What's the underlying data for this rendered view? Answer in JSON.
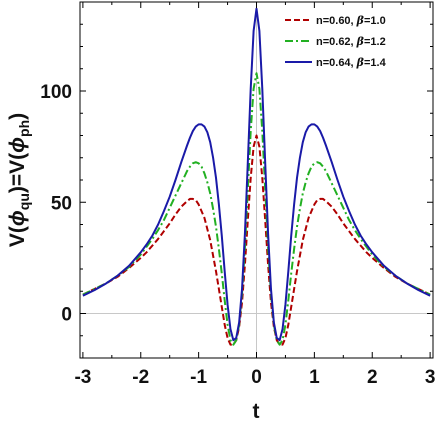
{
  "chart_data": {
    "type": "line",
    "xlabel": "t",
    "ylabel_parts": {
      "pre": "V(",
      "phi1": "ϕ",
      "sub1": "qu",
      "mid": ")=V(",
      "phi2": "ϕ",
      "sub2": "ph",
      "post": ")"
    },
    "xlim": [
      -3.05,
      3.05
    ],
    "ylim": [
      -20,
      140
    ],
    "x_ticks": [
      -3,
      -2,
      -1,
      0,
      1,
      2,
      3
    ],
    "x_tick_labels": [
      "-3",
      "-2",
      "-1",
      "0",
      "1",
      "2",
      "3"
    ],
    "y_ticks": [
      0,
      50,
      100
    ],
    "y_tick_labels": [
      "0",
      "50",
      "100"
    ],
    "grid": false,
    "legend_position": "top-right",
    "series": [
      {
        "name_n": "n=0.60, ",
        "name_beta_symbol": "β",
        "name_beta_value": "=1.0",
        "color": "#b00000",
        "dash": "dashed",
        "points": [
          [
            0,
            80
          ],
          [
            0.05,
            75
          ],
          [
            0.1,
            61
          ],
          [
            0.15,
            42
          ],
          [
            0.2,
            22
          ],
          [
            0.25,
            5
          ],
          [
            0.3,
            -6
          ],
          [
            0.35,
            -12
          ],
          [
            0.4,
            -14
          ],
          [
            0.45,
            -14
          ],
          [
            0.5,
            -11
          ],
          [
            0.55,
            -5
          ],
          [
            0.6,
            3
          ],
          [
            0.65,
            11
          ],
          [
            0.7,
            19
          ],
          [
            0.75,
            26
          ],
          [
            0.8,
            33
          ],
          [
            0.85,
            38
          ],
          [
            0.9,
            43
          ],
          [
            0.95,
            46
          ],
          [
            1.0,
            49
          ],
          [
            1.05,
            51
          ],
          [
            1.1,
            51.5
          ],
          [
            1.15,
            51.5
          ],
          [
            1.2,
            50.5
          ],
          [
            1.3,
            48
          ],
          [
            1.4,
            44.5
          ],
          [
            1.5,
            40.5
          ],
          [
            1.6,
            37
          ],
          [
            1.7,
            33.5
          ],
          [
            1.8,
            30.5
          ],
          [
            1.9,
            27.5
          ],
          [
            2.0,
            25
          ],
          [
            2.2,
            20.5
          ],
          [
            2.4,
            16.5
          ],
          [
            2.6,
            13.5
          ],
          [
            2.8,
            11
          ],
          [
            3.0,
            8.5
          ]
        ]
      },
      {
        "name_n": "n=0.62, ",
        "name_beta_symbol": "β",
        "name_beta_value": "=1.2",
        "color": "#22b022",
        "dash": "dashdot",
        "points": [
          [
            0,
            108
          ],
          [
            0.05,
            101
          ],
          [
            0.1,
            82
          ],
          [
            0.15,
            56
          ],
          [
            0.2,
            30
          ],
          [
            0.25,
            9
          ],
          [
            0.3,
            -5
          ],
          [
            0.35,
            -12
          ],
          [
            0.4,
            -14
          ],
          [
            0.45,
            -12
          ],
          [
            0.5,
            -5
          ],
          [
            0.55,
            6
          ],
          [
            0.6,
            18
          ],
          [
            0.65,
            29
          ],
          [
            0.7,
            39
          ],
          [
            0.75,
            47
          ],
          [
            0.8,
            54
          ],
          [
            0.85,
            59
          ],
          [
            0.9,
            63
          ],
          [
            0.95,
            66
          ],
          [
            1.0,
            67.5
          ],
          [
            1.05,
            68
          ],
          [
            1.1,
            67.5
          ],
          [
            1.15,
            66
          ],
          [
            1.2,
            64
          ],
          [
            1.3,
            58.5
          ],
          [
            1.4,
            53
          ],
          [
            1.5,
            47.5
          ],
          [
            1.6,
            42
          ],
          [
            1.7,
            37.5
          ],
          [
            1.8,
            33.5
          ],
          [
            1.9,
            30
          ],
          [
            2.0,
            26.5
          ],
          [
            2.2,
            21
          ],
          [
            2.4,
            17
          ],
          [
            2.6,
            13.5
          ],
          [
            2.8,
            11
          ],
          [
            3.0,
            8.5
          ]
        ]
      },
      {
        "name_n": "n=0.64, ",
        "name_beta_symbol": "β",
        "name_beta_value": "=1.4",
        "color": "#1a1aa8",
        "dash": "solid",
        "points": [
          [
            0,
            137
          ],
          [
            0.05,
            127
          ],
          [
            0.1,
            101
          ],
          [
            0.15,
            68
          ],
          [
            0.2,
            36
          ],
          [
            0.25,
            11
          ],
          [
            0.3,
            -4
          ],
          [
            0.35,
            -11
          ],
          [
            0.4,
            -12
          ],
          [
            0.45,
            -7
          ],
          [
            0.5,
            4
          ],
          [
            0.55,
            19
          ],
          [
            0.6,
            35
          ],
          [
            0.65,
            49
          ],
          [
            0.7,
            61
          ],
          [
            0.75,
            70
          ],
          [
            0.8,
            77
          ],
          [
            0.85,
            81.5
          ],
          [
            0.9,
            84
          ],
          [
            0.95,
            85
          ],
          [
            1.0,
            85
          ],
          [
            1.05,
            84
          ],
          [
            1.1,
            82
          ],
          [
            1.15,
            79
          ],
          [
            1.2,
            75.5
          ],
          [
            1.3,
            68
          ],
          [
            1.4,
            60
          ],
          [
            1.5,
            52.5
          ],
          [
            1.6,
            46
          ],
          [
            1.7,
            40
          ],
          [
            1.8,
            35
          ],
          [
            1.9,
            31
          ],
          [
            2.0,
            27.5
          ],
          [
            2.2,
            21.5
          ],
          [
            2.4,
            17
          ],
          [
            2.6,
            13.5
          ],
          [
            2.8,
            10.5
          ],
          [
            3.0,
            8
          ]
        ]
      }
    ]
  },
  "style": {
    "frame_color": "#000000",
    "zero_line_color": "#c8c8c8"
  }
}
